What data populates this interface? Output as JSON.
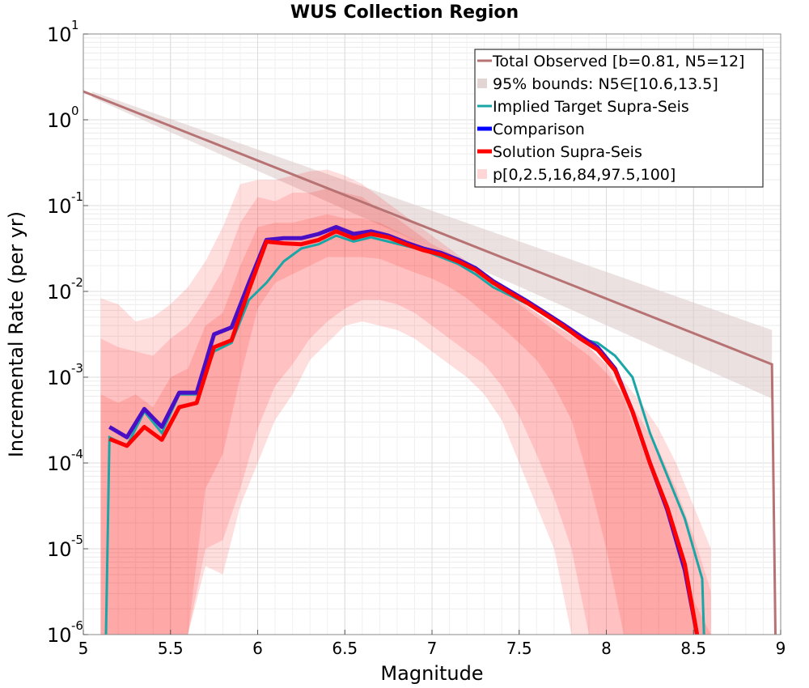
{
  "chart_data": {
    "type": "line",
    "title": "WUS Collection Region",
    "xlabel": "Magnitude",
    "ylabel": "Incremental Rate (per yr)",
    "xlim": [
      5,
      9
    ],
    "ylim_log10": [
      -6,
      1
    ],
    "y_scale": "log",
    "grid": true,
    "legend_position": "top-right",
    "x_ticks": [
      "5",
      "5.5",
      "6",
      "6.5",
      "7",
      "7.5",
      "8",
      "8.5",
      "9"
    ],
    "y_ticks": [
      {
        "base": "10",
        "exp": "1"
      },
      {
        "base": "10",
        "exp": "0"
      },
      {
        "base": "10",
        "exp": "-1"
      },
      {
        "base": "10",
        "exp": "-2"
      },
      {
        "base": "10",
        "exp": "-3"
      },
      {
        "base": "10",
        "exp": "-4"
      },
      {
        "base": "10",
        "exp": "-5"
      },
      {
        "base": "10",
        "exp": "-6"
      }
    ],
    "legend": [
      {
        "label": "Total Observed [b=0.81, N5=12]",
        "color": "#b77373",
        "kind": "line"
      },
      {
        "label": "95% bounds: N5∈[10.6,13.5]",
        "color": "#e4d5d5",
        "kind": "band"
      },
      {
        "label": "Implied Target Supra-Seis",
        "color": "#1aa6a6",
        "kind": "line"
      },
      {
        "label": "Comparison",
        "color": "#0000ff",
        "kind": "line"
      },
      {
        "label": "Solution Supra-Seis",
        "color": "#ff0000",
        "kind": "line"
      },
      {
        "label": "p[0,2.5,16,84,97.5,100]",
        "color": "#ffd5d5",
        "kind": "band"
      }
    ],
    "series": {
      "total_observed": {
        "color": "#b77373",
        "x": [
          5.0,
          8.95,
          8.95,
          8.97
        ],
        "log10_y": [
          0.33,
          -2.85,
          -2.85,
          -6.0
        ]
      },
      "observed_bounds": {
        "color": "#dcc8c8",
        "x": [
          5.05,
          8.95
        ],
        "log10_upper": [
          0.33,
          -2.45
        ],
        "log10_lower": [
          0.26,
          -3.25
        ]
      },
      "implied_target": {
        "color": "#1aa6a6",
        "x": [
          5.13,
          5.15,
          5.25,
          5.35,
          5.45,
          5.55,
          5.65,
          5.75,
          5.85,
          5.95,
          6.05,
          6.15,
          6.25,
          6.35,
          6.45,
          6.55,
          6.65,
          6.75,
          6.85,
          6.95,
          7.05,
          7.15,
          7.25,
          7.35,
          7.45,
          7.55,
          7.65,
          7.75,
          7.85,
          7.95,
          8.05,
          8.15,
          8.25,
          8.35,
          8.45,
          8.55,
          8.56
        ],
        "log10_y": [
          -6.0,
          -3.7,
          -3.8,
          -3.4,
          -3.65,
          -3.2,
          -3.2,
          -2.7,
          -2.6,
          -2.1,
          -1.9,
          -1.65,
          -1.5,
          -1.45,
          -1.35,
          -1.42,
          -1.37,
          -1.42,
          -1.47,
          -1.52,
          -1.6,
          -1.68,
          -1.8,
          -1.95,
          -2.05,
          -2.15,
          -2.28,
          -2.42,
          -2.55,
          -2.6,
          -2.75,
          -3.0,
          -3.65,
          -4.15,
          -4.65,
          -5.35,
          -6.0
        ]
      },
      "comparison": {
        "color": "#4a0fc4",
        "x": [
          5.15,
          5.25,
          5.35,
          5.45,
          5.55,
          5.65,
          5.75,
          5.85,
          5.95,
          6.05,
          6.15,
          6.25,
          6.35,
          6.45,
          6.55,
          6.65,
          6.75,
          6.85,
          6.95,
          7.05,
          7.15,
          7.25,
          7.35,
          7.45,
          7.55,
          7.65,
          7.75,
          7.85,
          7.95,
          8.05,
          8.15,
          8.25,
          8.35,
          8.45,
          8.52
        ],
        "log10_y": [
          -3.58,
          -3.7,
          -3.37,
          -3.58,
          -3.18,
          -3.18,
          -2.5,
          -2.42,
          -1.9,
          -1.4,
          -1.38,
          -1.38,
          -1.33,
          -1.25,
          -1.33,
          -1.3,
          -1.35,
          -1.43,
          -1.5,
          -1.55,
          -1.63,
          -1.73,
          -1.88,
          -2.0,
          -2.12,
          -2.25,
          -2.38,
          -2.52,
          -2.65,
          -2.9,
          -3.4,
          -4.0,
          -4.55,
          -5.25,
          -6.0
        ]
      },
      "solution": {
        "color": "#ff0000",
        "x": [
          5.15,
          5.25,
          5.35,
          5.45,
          5.55,
          5.65,
          5.75,
          5.85,
          5.95,
          6.05,
          6.15,
          6.25,
          6.35,
          6.45,
          6.55,
          6.65,
          6.75,
          6.85,
          6.95,
          7.05,
          7.15,
          7.25,
          7.35,
          7.45,
          7.55,
          7.65,
          7.75,
          7.85,
          7.95,
          8.05,
          8.15,
          8.25,
          8.35,
          8.45,
          8.52
        ],
        "log10_y": [
          -3.72,
          -3.8,
          -3.58,
          -3.73,
          -3.35,
          -3.3,
          -2.65,
          -2.57,
          -1.98,
          -1.42,
          -1.44,
          -1.45,
          -1.4,
          -1.3,
          -1.38,
          -1.33,
          -1.37,
          -1.45,
          -1.52,
          -1.57,
          -1.65,
          -1.75,
          -1.9,
          -2.02,
          -2.14,
          -2.27,
          -2.4,
          -2.55,
          -2.68,
          -2.92,
          -3.4,
          -4.0,
          -4.52,
          -5.18,
          -6.0
        ]
      },
      "percentile_bands": {
        "color": "#ff0000",
        "x": [
          5.1,
          5.2,
          5.3,
          5.4,
          5.5,
          5.6,
          5.7,
          5.8,
          5.9,
          6.0,
          6.1,
          6.2,
          6.3,
          6.4,
          6.5,
          6.6,
          6.7,
          6.8,
          6.9,
          7.0,
          7.1,
          7.2,
          7.3,
          7.4,
          7.5,
          7.6,
          7.7,
          7.8,
          7.9,
          8.0,
          8.1,
          8.2,
          8.3,
          8.4,
          8.5,
          8.6
        ],
        "outer": {
          "log10_upper": [
            -2.08,
            -2.15,
            -2.35,
            -2.3,
            -2.15,
            -1.95,
            -1.65,
            -1.25,
            -0.75,
            -0.7,
            -0.7,
            -0.65,
            -0.6,
            -0.58,
            -0.65,
            -0.75,
            -0.9,
            -1.05,
            -1.2,
            -1.35,
            -1.5,
            -1.65,
            -1.8,
            -1.95,
            -2.1,
            -2.25,
            -2.4,
            -2.5,
            -2.65,
            -2.85,
            -3.05,
            -3.3,
            -3.6,
            -4.0,
            -4.5,
            -5.0
          ],
          "log10_lower": [
            -6.0,
            -6.0,
            -6.0,
            -6.0,
            -6.0,
            -6.0,
            -5.2,
            -5.3,
            -4.5,
            -4.0,
            -3.5,
            -3.2,
            -2.8,
            -2.6,
            -2.4,
            -2.35,
            -2.4,
            -2.45,
            -2.55,
            -2.7,
            -2.85,
            -3.0,
            -3.2,
            -3.5,
            -4.0,
            -4.5,
            -5.0,
            -6.0,
            -6.0,
            -6.0,
            -6.0,
            -6.0,
            -6.0,
            -6.0,
            -6.0,
            -6.0
          ]
        },
        "mid": {
          "log10_upper": [
            -2.55,
            -2.65,
            -2.7,
            -2.75,
            -2.55,
            -2.4,
            -2.1,
            -1.75,
            -1.2,
            -0.9,
            -0.95,
            -0.85,
            -0.85,
            -0.8,
            -0.85,
            -0.9,
            -1.05,
            -1.15,
            -1.3,
            -1.45,
            -1.55,
            -1.7,
            -1.88,
            -2.0,
            -2.15,
            -2.3,
            -2.45,
            -2.6,
            -2.75,
            -2.95,
            -3.2,
            -3.5,
            -3.85,
            -4.3,
            -4.85,
            -5.5
          ],
          "log10_lower": [
            -6.0,
            -6.0,
            -6.0,
            -6.0,
            -6.0,
            -6.0,
            -5.0,
            -4.9,
            -4.3,
            -3.6,
            -3.1,
            -2.85,
            -2.55,
            -2.35,
            -2.2,
            -2.1,
            -2.1,
            -2.15,
            -2.25,
            -2.4,
            -2.55,
            -2.7,
            -2.85,
            -3.1,
            -3.45,
            -3.9,
            -4.4,
            -5.0,
            -6.0,
            -6.0,
            -6.0,
            -6.0,
            -6.0,
            -6.0,
            -6.0,
            -6.0
          ]
        },
        "inner": {
          "log10_upper": [
            -3.2,
            -3.3,
            -3.2,
            -3.35,
            -3.0,
            -2.9,
            -2.4,
            -2.25,
            -1.7,
            -1.25,
            -1.2,
            -1.2,
            -1.15,
            -1.1,
            -1.15,
            -1.15,
            -1.2,
            -1.3,
            -1.4,
            -1.5,
            -1.6,
            -1.72,
            -1.88,
            -2.0,
            -2.12,
            -2.25,
            -2.38,
            -2.52,
            -2.65,
            -2.85,
            -3.25,
            -3.8,
            -4.3,
            -4.9,
            -5.6,
            -6.0
          ],
          "log10_lower": [
            -6.0,
            -6.0,
            -6.0,
            -6.0,
            -6.0,
            -6.0,
            -4.3,
            -3.9,
            -3.0,
            -2.2,
            -1.9,
            -1.8,
            -1.7,
            -1.6,
            -1.6,
            -1.6,
            -1.62,
            -1.7,
            -1.78,
            -1.85,
            -1.95,
            -2.08,
            -2.25,
            -2.42,
            -2.6,
            -2.8,
            -3.1,
            -3.5,
            -4.2,
            -5.0,
            -6.0,
            -6.0,
            -6.0,
            -6.0,
            -6.0,
            -6.0
          ]
        }
      }
    }
  }
}
